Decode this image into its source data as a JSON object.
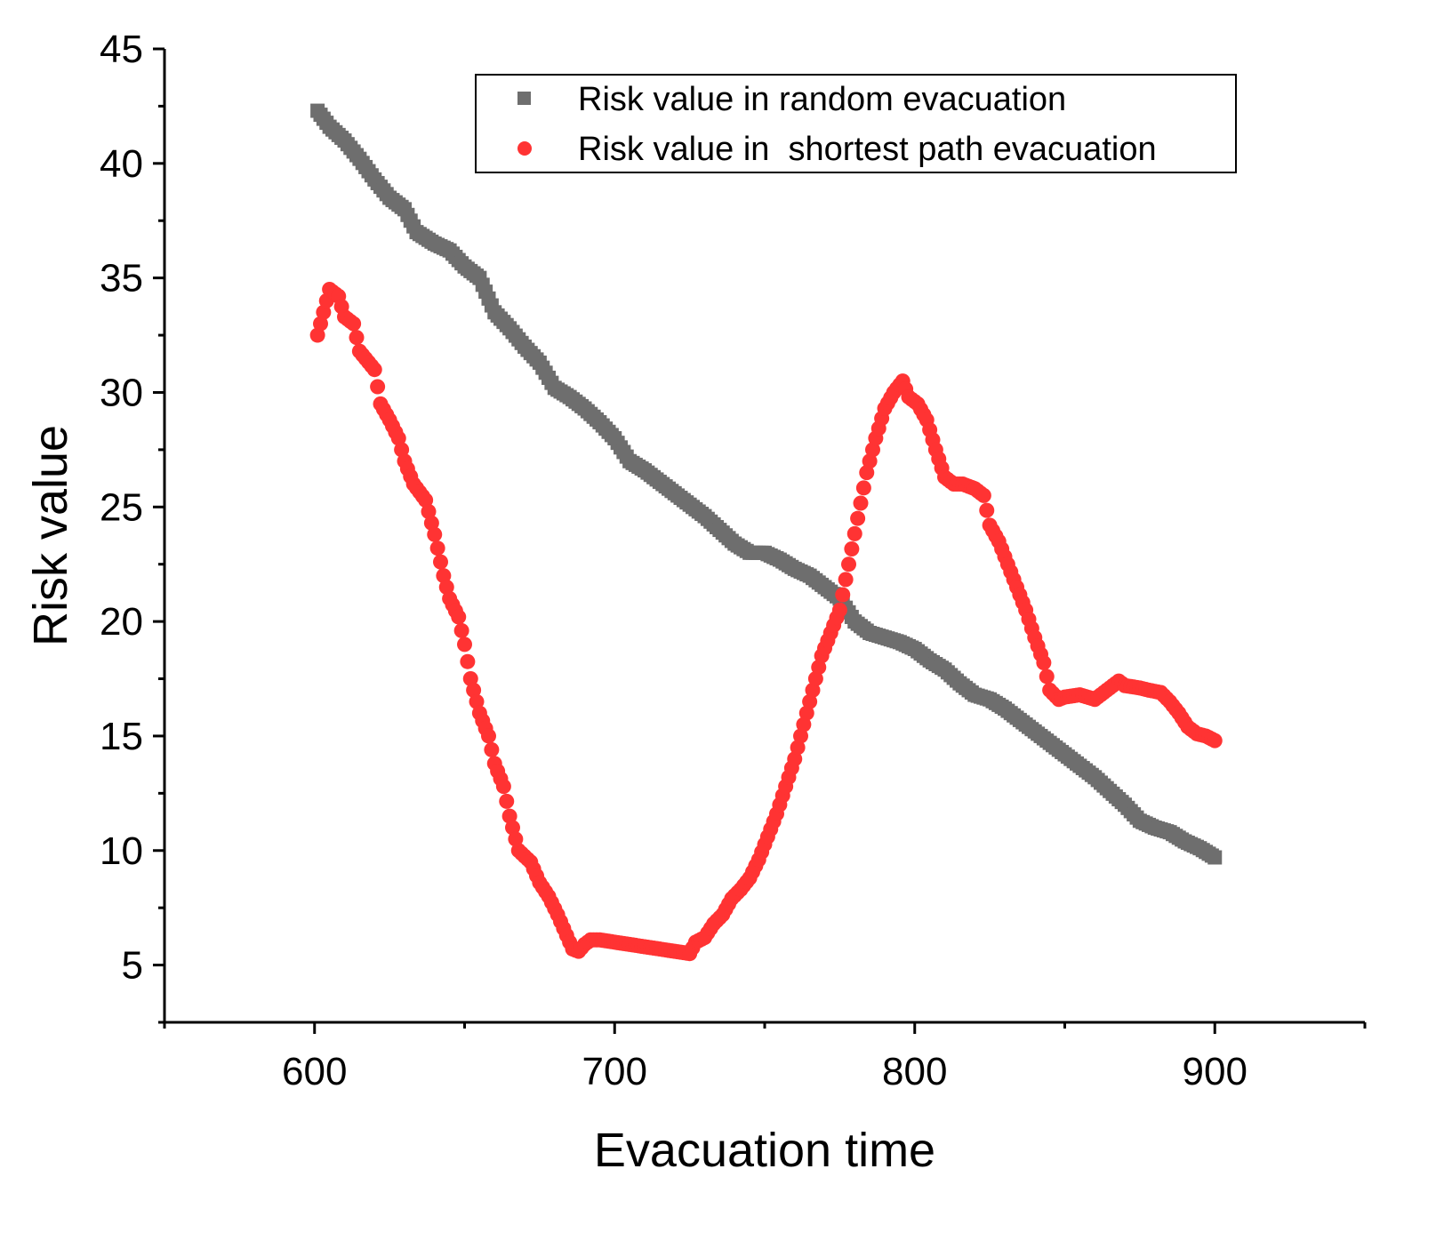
{
  "chart_data": {
    "type": "scatter",
    "title": "",
    "xlabel": "Evacuation time",
    "ylabel": "Risk value",
    "xlim": [
      550,
      950
    ],
    "ylim": [
      2.5,
      45
    ],
    "x_ticks": [
      600,
      700,
      800,
      900
    ],
    "x_tick_labels": [
      "600",
      "700",
      "800",
      "900"
    ],
    "y_ticks": [
      5,
      10,
      15,
      20,
      25,
      30,
      35,
      40,
      45
    ],
    "y_tick_labels": [
      "5",
      "10",
      "15",
      "20",
      "25",
      "30",
      "35",
      "40",
      "45"
    ],
    "grid": false,
    "legend_position": "top-right",
    "series_colors": [
      "#6e6e6e",
      "#ff3333"
    ],
    "series": [
      {
        "name": "Risk value in random evacuation",
        "marker": "square",
        "color": "#6e6e6e",
        "points": [
          [
            601,
            42.3
          ],
          [
            605,
            41.6
          ],
          [
            610,
            41.0
          ],
          [
            615,
            40.2
          ],
          [
            620,
            39.3
          ],
          [
            625,
            38.5
          ],
          [
            630,
            38.0
          ],
          [
            634,
            37.0
          ],
          [
            640,
            36.5
          ],
          [
            645,
            36.2
          ],
          [
            650,
            35.5
          ],
          [
            655,
            35.0
          ],
          [
            660,
            33.5
          ],
          [
            665,
            32.8
          ],
          [
            670,
            32.0
          ],
          [
            675,
            31.3
          ],
          [
            680,
            30.2
          ],
          [
            685,
            29.8
          ],
          [
            690,
            29.3
          ],
          [
            695,
            28.7
          ],
          [
            700,
            28.0
          ],
          [
            705,
            27.0
          ],
          [
            710,
            26.6
          ],
          [
            715,
            26.1
          ],
          [
            720,
            25.6
          ],
          [
            725,
            25.1
          ],
          [
            730,
            24.6
          ],
          [
            735,
            24.0
          ],
          [
            740,
            23.4
          ],
          [
            745,
            23.0
          ],
          [
            750,
            23.0
          ],
          [
            755,
            22.7
          ],
          [
            760,
            22.3
          ],
          [
            765,
            22.0
          ],
          [
            770,
            21.5
          ],
          [
            775,
            21.0
          ],
          [
            780,
            20.0
          ],
          [
            785,
            19.5
          ],
          [
            790,
            19.3
          ],
          [
            795,
            19.1
          ],
          [
            800,
            18.8
          ],
          [
            805,
            18.3
          ],
          [
            810,
            17.9
          ],
          [
            815,
            17.3
          ],
          [
            820,
            16.8
          ],
          [
            825,
            16.6
          ],
          [
            830,
            16.2
          ],
          [
            835,
            15.7
          ],
          [
            840,
            15.2
          ],
          [
            845,
            14.7
          ],
          [
            850,
            14.2
          ],
          [
            855,
            13.7
          ],
          [
            860,
            13.2
          ],
          [
            865,
            12.6
          ],
          [
            870,
            12.0
          ],
          [
            875,
            11.3
          ],
          [
            880,
            11.0
          ],
          [
            885,
            10.8
          ],
          [
            890,
            10.4
          ],
          [
            895,
            10.1
          ],
          [
            900,
            9.7
          ]
        ]
      },
      {
        "name": "Risk value in  shortest path evacuation",
        "marker": "circle",
        "color": "#ff3333",
        "points": [
          [
            601,
            32.5
          ],
          [
            603,
            33.5
          ],
          [
            605,
            34.5
          ],
          [
            608,
            34.2
          ],
          [
            610,
            33.3
          ],
          [
            613,
            33.0
          ],
          [
            615,
            31.8
          ],
          [
            620,
            31.0
          ],
          [
            622,
            29.5
          ],
          [
            625,
            28.8
          ],
          [
            628,
            28.0
          ],
          [
            630,
            27.0
          ],
          [
            633,
            26.0
          ],
          [
            637,
            25.3
          ],
          [
            640,
            23.8
          ],
          [
            643,
            22.0
          ],
          [
            645,
            21.0
          ],
          [
            648,
            20.2
          ],
          [
            650,
            19.0
          ],
          [
            652,
            17.5
          ],
          [
            655,
            16.0
          ],
          [
            658,
            15.0
          ],
          [
            660,
            13.8
          ],
          [
            663,
            12.8
          ],
          [
            665,
            11.5
          ],
          [
            668,
            10.0
          ],
          [
            672,
            9.5
          ],
          [
            675,
            8.6
          ],
          [
            678,
            8.0
          ],
          [
            681,
            7.2
          ],
          [
            684,
            6.3
          ],
          [
            686,
            5.7
          ],
          [
            688,
            5.6
          ],
          [
            690,
            5.9
          ],
          [
            692,
            6.1
          ],
          [
            695,
            6.1
          ],
          [
            700,
            6.0
          ],
          [
            705,
            5.9
          ],
          [
            710,
            5.8
          ],
          [
            715,
            5.7
          ],
          [
            720,
            5.6
          ],
          [
            725,
            5.5
          ],
          [
            727,
            6.0
          ],
          [
            730,
            6.2
          ],
          [
            733,
            6.8
          ],
          [
            736,
            7.2
          ],
          [
            739,
            7.9
          ],
          [
            742,
            8.3
          ],
          [
            745,
            8.8
          ],
          [
            748,
            9.6
          ],
          [
            751,
            10.6
          ],
          [
            754,
            11.6
          ],
          [
            757,
            12.8
          ],
          [
            760,
            14.0
          ],
          [
            763,
            15.5
          ],
          [
            766,
            17.0
          ],
          [
            769,
            18.5
          ],
          [
            772,
            19.5
          ],
          [
            775,
            20.5
          ],
          [
            778,
            22.5
          ],
          [
            781,
            24.5
          ],
          [
            784,
            26.5
          ],
          [
            787,
            28.0
          ],
          [
            790,
            29.3
          ],
          [
            793,
            30.0
          ],
          [
            796,
            30.5
          ],
          [
            798,
            29.8
          ],
          [
            801,
            29.5
          ],
          [
            804,
            28.8
          ],
          [
            807,
            27.5
          ],
          [
            810,
            26.3
          ],
          [
            813,
            26.0
          ],
          [
            816,
            26.0
          ],
          [
            820,
            25.8
          ],
          [
            823,
            25.5
          ],
          [
            825,
            24.2
          ],
          [
            828,
            23.5
          ],
          [
            831,
            22.5
          ],
          [
            834,
            21.5
          ],
          [
            837,
            20.5
          ],
          [
            840,
            19.3
          ],
          [
            843,
            18.2
          ],
          [
            845,
            17.0
          ],
          [
            848,
            16.6
          ],
          [
            850,
            16.7
          ],
          [
            855,
            16.8
          ],
          [
            860,
            16.6
          ],
          [
            865,
            17.1
          ],
          [
            868,
            17.4
          ],
          [
            870,
            17.2
          ],
          [
            875,
            17.1
          ],
          [
            878,
            17.0
          ],
          [
            882,
            16.9
          ],
          [
            885,
            16.5
          ],
          [
            888,
            16.0
          ],
          [
            891,
            15.4
          ],
          [
            894,
            15.1
          ],
          [
            897,
            15.0
          ],
          [
            900,
            14.8
          ]
        ]
      }
    ]
  }
}
